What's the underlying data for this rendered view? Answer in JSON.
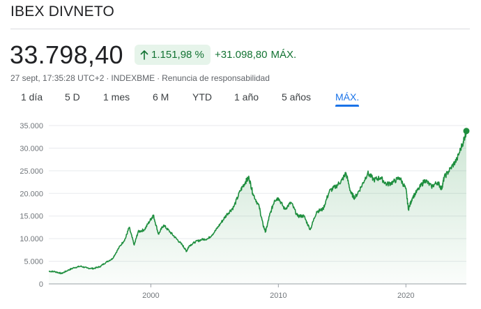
{
  "header": {
    "title": "IBEX DIVNETO",
    "price": "33.798,40",
    "change_percent": "1.151,98 %",
    "change_abs": "+31.098,80",
    "change_period": "MÁX.",
    "timestamp": "27 sept, 17:35:28 UTC+2",
    "separator": "·",
    "exchange": "INDEXBME",
    "disclaimer": "Renuncia de responsabilidad",
    "up_color": "#137333",
    "arrow_icon": "arrow-up-icon"
  },
  "tabs": [
    {
      "label": "1 día",
      "active": false
    },
    {
      "label": "5 D",
      "active": false
    },
    {
      "label": "1 mes",
      "active": false
    },
    {
      "label": "6 M",
      "active": false
    },
    {
      "label": "YTD",
      "active": false
    },
    {
      "label": "1 año",
      "active": false
    },
    {
      "label": "5 años",
      "active": false
    },
    {
      "label": "MÁX.",
      "active": true
    }
  ],
  "chart_data": {
    "type": "area",
    "line_color": "#1e8e3e",
    "grid": true,
    "ylim": [
      0,
      35000
    ],
    "xlim": [
      1992.0,
      2024.74
    ],
    "yticks": [
      {
        "value": 0,
        "label": "0"
      },
      {
        "value": 5000,
        "label": "5.000"
      },
      {
        "value": 10000,
        "label": "10.000"
      },
      {
        "value": 15000,
        "label": "15.000"
      },
      {
        "value": 20000,
        "label": "20.000"
      },
      {
        "value": 25000,
        "label": "25.000"
      },
      {
        "value": 30000,
        "label": "30.000"
      },
      {
        "value": 35000,
        "label": "35.000"
      }
    ],
    "xticks": [
      {
        "value": 2000,
        "label": "2000"
      },
      {
        "value": 2010,
        "label": "2010"
      },
      {
        "value": 2020,
        "label": "2020"
      }
    ],
    "series": [
      {
        "x": [
          1992.0,
          1992.5,
          1993.0,
          1993.5,
          1994.0,
          1994.5,
          1995.0,
          1995.5,
          1996.0,
          1996.5,
          1997.0,
          1997.5,
          1998.0,
          1998.3,
          1998.7,
          1999.0,
          1999.5,
          2000.0,
          2000.2,
          2000.6,
          2001.0,
          2001.5,
          2002.0,
          2002.5,
          2002.8,
          2003.0,
          2003.5,
          2004.0,
          2004.5,
          2005.0,
          2005.5,
          2006.0,
          2006.5,
          2007.0,
          2007.4,
          2007.7,
          2008.0,
          2008.5,
          2008.8,
          2009.0,
          2009.3,
          2009.7,
          2010.0,
          2010.5,
          2011.0,
          2011.5,
          2012.0,
          2012.5,
          2013.0,
          2013.5,
          2014.0,
          2014.5,
          2015.0,
          2015.3,
          2015.7,
          2016.0,
          2016.5,
          2017.0,
          2017.5,
          2018.0,
          2018.5,
          2019.0,
          2019.5,
          2020.0,
          2020.2,
          2020.5,
          2021.0,
          2021.5,
          2022.0,
          2022.5,
          2022.8,
          2023.0,
          2023.5,
          2024.0,
          2024.5,
          2024.74
        ],
        "y": [
          2800,
          2700,
          2300,
          3000,
          3600,
          3900,
          3500,
          3400,
          3800,
          4800,
          5600,
          8000,
          10000,
          12500,
          8600,
          11500,
          12000,
          14300,
          15200,
          11000,
          13000,
          11500,
          10000,
          8500,
          7200,
          8400,
          9300,
          9800,
          10000,
          11500,
          13500,
          15500,
          17000,
          20500,
          22500,
          23500,
          20000,
          17000,
          13000,
          11500,
          15000,
          18500,
          19000,
          16500,
          18000,
          15000,
          15000,
          12000,
          16000,
          16500,
          20500,
          21500,
          23000,
          24500,
          20000,
          19000,
          21500,
          24500,
          23000,
          23500,
          22000,
          22500,
          23500,
          21000,
          16500,
          19000,
          21000,
          23000,
          21500,
          22500,
          21000,
          23500,
          25500,
          27500,
          31500,
          33800
        ]
      }
    ],
    "end_point": {
      "x": 2024.74,
      "y": 33798.4
    }
  }
}
